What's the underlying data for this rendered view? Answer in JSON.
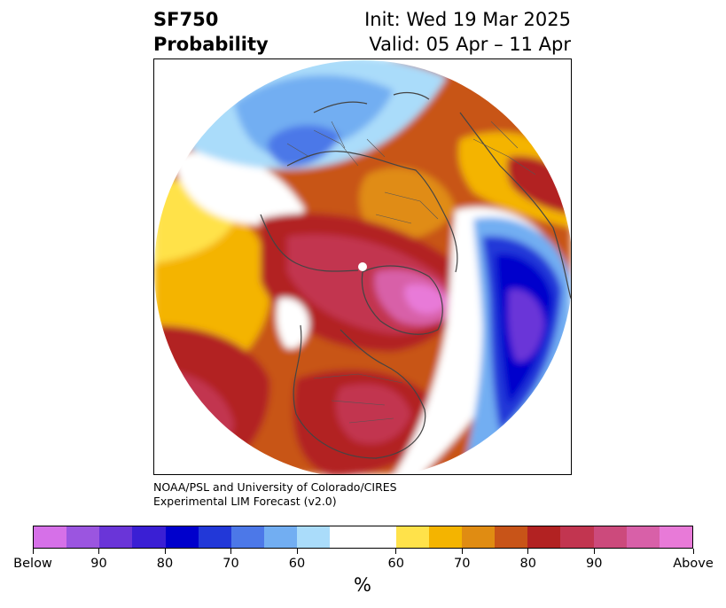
{
  "header": {
    "title_line1": "SF750",
    "title_line2": "Probability",
    "init": "Init: Wed 19 Mar 2025",
    "valid": "Valid: 05 Apr – 11 Apr"
  },
  "credit": {
    "line1": "NOAA/PSL and University of Colorado/CIRES",
    "line2": "Experimental LIM Forecast (v2.0)"
  },
  "colorbar": {
    "unit": "%",
    "tick_labels": [
      "Below",
      "90",
      "80",
      "70",
      "60",
      "60",
      "70",
      "80",
      "90",
      "Above"
    ],
    "below_colors": [
      "#d670e8",
      "#9b55e0",
      "#6a35d8",
      "#3a1fd4",
      "#0000cc",
      "#2238d8",
      "#4c78e8",
      "#72aef2",
      "#aadcfa"
    ],
    "neutral_color": "#ffffff",
    "above_colors": [
      "#ffe24a",
      "#f4b400",
      "#e08c12",
      "#c85418",
      "#b22222",
      "#c23550",
      "#cc4a7c",
      "#d860a8",
      "#e87ad8"
    ]
  },
  "map": {
    "projection": "north-polar-stereographic",
    "colors": {
      "outline": "#444444",
      "pole_marker": "#ffffff"
    }
  }
}
